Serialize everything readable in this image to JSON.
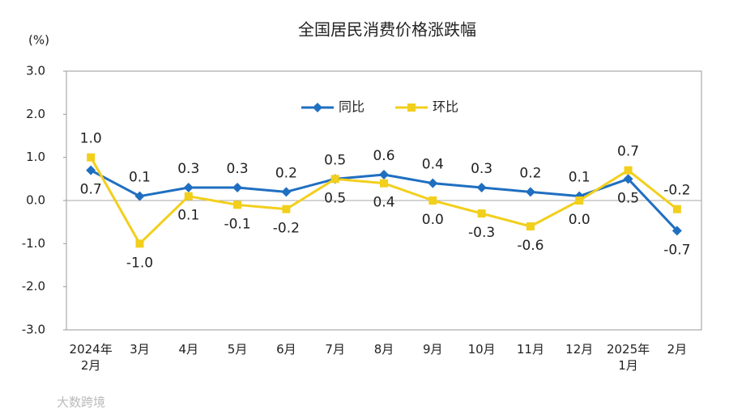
{
  "chart_data": {
    "type": "line",
    "title": "全国居民消费价格涨跌幅",
    "y_label": "(%)",
    "watermark": "大数跨境",
    "categories": [
      "2024年\n2月",
      "3月",
      "4月",
      "5月",
      "6月",
      "7月",
      "8月",
      "9月",
      "10月",
      "11月",
      "12月",
      "2025年\n1月",
      "2月"
    ],
    "series": [
      {
        "name": "同比",
        "color": "#1f6fc0",
        "marker": "diamond",
        "values": [
          0.7,
          0.1,
          0.3,
          0.3,
          0.2,
          0.5,
          0.6,
          0.4,
          0.3,
          0.2,
          0.1,
          0.5,
          -0.7
        ],
        "value_labels": [
          "0.7",
          "0.1",
          "0.3",
          "0.3",
          "0.2",
          "0.5",
          "0.6",
          "0.4",
          "0.3",
          "0.2",
          "0.1",
          "0.5",
          "-0.7"
        ]
      },
      {
        "name": "环比",
        "color": "#f2cf1d",
        "marker": "square",
        "values": [
          1.0,
          -1.0,
          0.1,
          -0.1,
          -0.2,
          0.5,
          0.4,
          0.0,
          -0.3,
          -0.6,
          0.0,
          0.7,
          -0.2
        ],
        "value_labels": [
          "1.0",
          "-1.0",
          "0.1",
          "-0.1",
          "-0.2",
          "0.5",
          "0.4",
          "0.0",
          "-0.3",
          "-0.6",
          "0.0",
          "0.7",
          "-0.2"
        ]
      }
    ],
    "ylim": [
      -3,
      3
    ],
    "yticks": [
      {
        "value": -3,
        "label": "-3.0"
      },
      {
        "value": -2,
        "label": "-2.0"
      },
      {
        "value": -1,
        "label": "-1.0"
      },
      {
        "value": 0,
        "label": "0.0"
      },
      {
        "value": 1,
        "label": "1.0"
      },
      {
        "value": 2,
        "label": "2.0"
      },
      {
        "value": 3,
        "label": "3.0"
      }
    ],
    "grid": false,
    "legend": "top"
  }
}
